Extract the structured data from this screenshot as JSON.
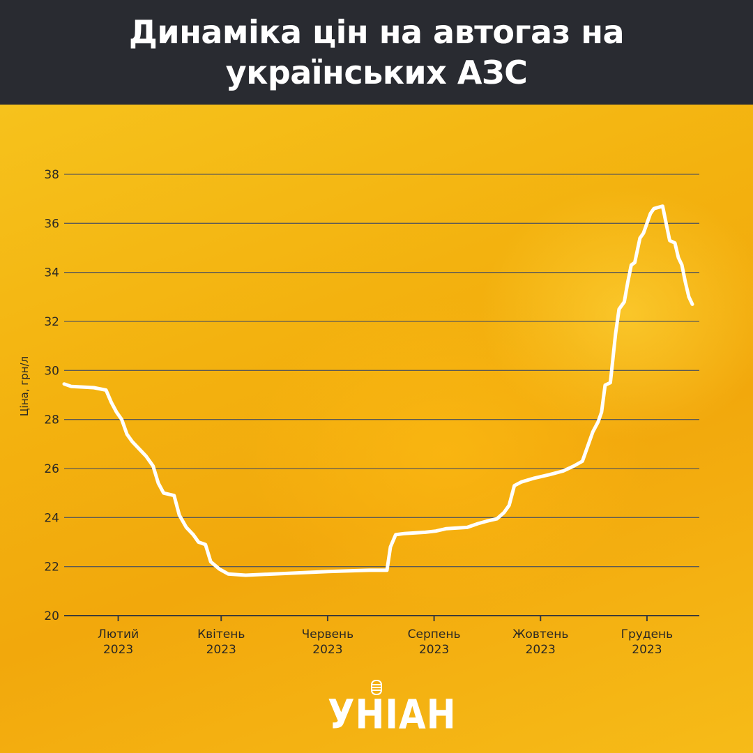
{
  "title": "Динаміка цін на автогаз на українських АЗС",
  "colors": {
    "header_bg": "#292b31",
    "background": "#f4b414",
    "line": "#ffffff",
    "grid": "#5c5a55",
    "text": "#2a2824"
  },
  "chart_data": {
    "type": "line",
    "title": "Динаміка цін на автогаз на українських АЗС",
    "ylabel": "Ціна, грн/л",
    "xlabel": "",
    "ylim": [
      20,
      38
    ],
    "yticks": [
      20,
      22,
      24,
      26,
      28,
      30,
      32,
      34,
      36,
      38
    ],
    "grid": true,
    "x_unit": "day",
    "x_range": [
      "2023-01-01",
      "2023-12-31"
    ],
    "xticks": [
      {
        "date": "2023-02-01",
        "label": [
          "Лютий",
          "2023"
        ]
      },
      {
        "date": "2023-04-01",
        "label": [
          "Квітень",
          "2023"
        ]
      },
      {
        "date": "2023-06-01",
        "label": [
          "Червень",
          "2023"
        ]
      },
      {
        "date": "2023-08-01",
        "label": [
          "Серпень",
          "2023"
        ]
      },
      {
        "date": "2023-10-01",
        "label": [
          "Жовтень",
          "2023"
        ]
      },
      {
        "date": "2023-12-01",
        "label": [
          "Грудень",
          "2023"
        ]
      }
    ],
    "series": [
      {
        "values": [
          [
            "2023-01-01",
            29.45
          ],
          [
            "2023-01-05",
            29.35
          ],
          [
            "2023-01-18",
            29.3
          ],
          [
            "2023-01-25",
            29.2
          ],
          [
            "2023-01-28",
            28.7
          ],
          [
            "2023-01-31",
            28.3
          ],
          [
            "2023-02-03",
            28.0
          ],
          [
            "2023-02-06",
            27.4
          ],
          [
            "2023-02-09",
            27.1
          ],
          [
            "2023-02-13",
            26.8
          ],
          [
            "2023-02-17",
            26.5
          ],
          [
            "2023-02-21",
            26.1
          ],
          [
            "2023-02-24",
            25.4
          ],
          [
            "2023-02-27",
            25.0
          ],
          [
            "2023-03-05",
            24.9
          ],
          [
            "2023-03-08",
            24.1
          ],
          [
            "2023-03-12",
            23.6
          ],
          [
            "2023-03-16",
            23.3
          ],
          [
            "2023-03-19",
            23.0
          ],
          [
            "2023-03-23",
            22.9
          ],
          [
            "2023-03-26",
            22.2
          ],
          [
            "2023-03-31",
            21.9
          ],
          [
            "2023-04-05",
            21.7
          ],
          [
            "2023-04-15",
            21.65
          ],
          [
            "2023-05-01",
            21.7
          ],
          [
            "2023-06-01",
            21.8
          ],
          [
            "2023-06-25",
            21.85
          ],
          [
            "2023-07-05",
            21.85
          ],
          [
            "2023-07-07",
            22.8
          ],
          [
            "2023-07-10",
            23.3
          ],
          [
            "2023-07-15",
            23.35
          ],
          [
            "2023-07-27",
            23.4
          ],
          [
            "2023-08-02",
            23.45
          ],
          [
            "2023-08-08",
            23.55
          ],
          [
            "2023-08-20",
            23.6
          ],
          [
            "2023-08-26",
            23.75
          ],
          [
            "2023-08-31",
            23.85
          ],
          [
            "2023-09-06",
            23.95
          ],
          [
            "2023-09-10",
            24.2
          ],
          [
            "2023-09-13",
            24.5
          ],
          [
            "2023-09-16",
            25.3
          ],
          [
            "2023-09-20",
            25.45
          ],
          [
            "2023-09-27",
            25.6
          ],
          [
            "2023-10-06",
            25.75
          ],
          [
            "2023-10-14",
            25.9
          ],
          [
            "2023-10-20",
            26.1
          ],
          [
            "2023-10-25",
            26.3
          ],
          [
            "2023-10-28",
            26.9
          ],
          [
            "2023-10-31",
            27.5
          ],
          [
            "2023-11-03",
            27.9
          ],
          [
            "2023-11-05",
            28.3
          ],
          [
            "2023-11-07",
            29.4
          ],
          [
            "2023-11-10",
            29.5
          ],
          [
            "2023-11-13",
            31.5
          ],
          [
            "2023-11-15",
            32.5
          ],
          [
            "2023-11-18",
            32.8
          ],
          [
            "2023-11-20",
            33.6
          ],
          [
            "2023-11-22",
            34.3
          ],
          [
            "2023-11-24",
            34.4
          ],
          [
            "2023-11-27",
            35.4
          ],
          [
            "2023-11-29",
            35.6
          ],
          [
            "2023-12-01",
            36.0
          ],
          [
            "2023-12-03",
            36.4
          ],
          [
            "2023-12-05",
            36.6
          ],
          [
            "2023-12-10",
            36.7
          ],
          [
            "2023-12-14",
            35.3
          ],
          [
            "2023-12-17",
            35.2
          ],
          [
            "2023-12-19",
            34.6
          ],
          [
            "2023-12-21",
            34.3
          ],
          [
            "2023-12-23",
            33.6
          ],
          [
            "2023-12-25",
            33.0
          ],
          [
            "2023-12-27",
            32.7
          ]
        ]
      }
    ]
  },
  "logo": {
    "text": "УНІАН"
  }
}
